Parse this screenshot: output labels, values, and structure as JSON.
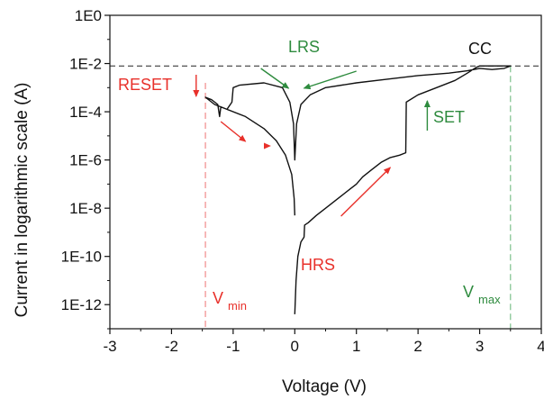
{
  "chart_data": {
    "type": "line",
    "xlabel": "Voltage (V)",
    "ylabel": "Current in logarithmic scale (A)",
    "xlim": [
      -3,
      4
    ],
    "ylim_log10": [
      -13,
      0
    ],
    "x_ticks": [
      -3,
      -2,
      -1,
      0,
      1,
      2,
      3,
      4
    ],
    "x_tick_labels": [
      "-3",
      "-2",
      "-1",
      "0",
      "1",
      "2",
      "3",
      "4"
    ],
    "y_ticks_log10": [
      0,
      -2,
      -4,
      -6,
      -8,
      -10,
      -12
    ],
    "y_tick_labels": [
      "1E0",
      "1E-2",
      "1E-4",
      "1E-6",
      "1E-8",
      "1E-10",
      "1E-12"
    ],
    "compliance_current_log10": -2.1,
    "v_min": -1.45,
    "v_max": 3.5,
    "series": [
      {
        "values_log10": [
          [
            0.0,
            -12.4
          ],
          [
            0.02,
            -11.0
          ],
          [
            0.05,
            -10.0
          ],
          [
            0.1,
            -9.4
          ],
          [
            0.15,
            -9.2
          ],
          [
            0.16,
            -8.7
          ],
          [
            0.22,
            -8.6
          ],
          [
            0.35,
            -8.3
          ],
          [
            0.5,
            -8.0
          ],
          [
            0.7,
            -7.6
          ],
          [
            0.9,
            -7.2
          ],
          [
            1.0,
            -7.0
          ],
          [
            1.1,
            -6.7
          ],
          [
            1.25,
            -6.4
          ],
          [
            1.4,
            -6.1
          ],
          [
            1.55,
            -5.9
          ],
          [
            1.7,
            -5.8
          ],
          [
            1.8,
            -5.7
          ],
          [
            1.81,
            -3.6
          ],
          [
            2.0,
            -3.3
          ],
          [
            2.3,
            -3.0
          ],
          [
            2.6,
            -2.7
          ],
          [
            2.8,
            -2.4
          ],
          [
            2.95,
            -2.15
          ],
          [
            3.0,
            -2.1
          ],
          [
            3.5,
            -2.1
          ],
          [
            3.4,
            -2.2
          ],
          [
            3.2,
            -2.25
          ],
          [
            3.0,
            -2.2
          ],
          [
            2.8,
            -2.3
          ],
          [
            2.5,
            -2.4
          ],
          [
            2.0,
            -2.5
          ],
          [
            1.5,
            -2.65
          ],
          [
            1.0,
            -2.8
          ],
          [
            0.5,
            -3.0
          ],
          [
            0.25,
            -3.3
          ],
          [
            0.1,
            -3.7
          ],
          [
            0.03,
            -4.5
          ],
          [
            0.0,
            -6.0
          ],
          [
            -0.02,
            -4.5
          ],
          [
            -0.08,
            -3.6
          ],
          [
            -0.2,
            -3.0
          ],
          [
            -0.5,
            -2.8
          ],
          [
            -0.9,
            -2.9
          ],
          [
            -1.0,
            -3.0
          ],
          [
            -1.02,
            -3.6
          ],
          [
            -1.1,
            -3.9
          ],
          [
            -1.2,
            -3.8
          ],
          [
            -1.22,
            -4.2
          ],
          [
            -1.25,
            -3.7
          ],
          [
            -1.35,
            -3.5
          ],
          [
            -1.45,
            -3.4
          ],
          [
            -1.3,
            -3.7
          ],
          [
            -1.1,
            -3.9
          ],
          [
            -0.8,
            -4.2
          ],
          [
            -0.5,
            -4.7
          ],
          [
            -0.3,
            -5.2
          ],
          [
            -0.15,
            -5.8
          ],
          [
            -0.05,
            -6.6
          ],
          [
            -0.01,
            -7.6
          ],
          [
            0.0,
            -8.3
          ]
        ]
      }
    ],
    "annotations": {
      "cc": "CC",
      "lrs": "LRS",
      "reset": "RESET",
      "set": "SET",
      "hrs": "HRS",
      "vmin_main": "V",
      "vmin_sub": "min",
      "vmax_main": "V",
      "vmax_sub": "max"
    },
    "colors": {
      "curve": "#111111",
      "red": "#e8302a",
      "green": "#2e8b3e",
      "vmin_line": "#f08a8a",
      "vmax_line": "#7cc08a",
      "axis": "#111111"
    }
  }
}
